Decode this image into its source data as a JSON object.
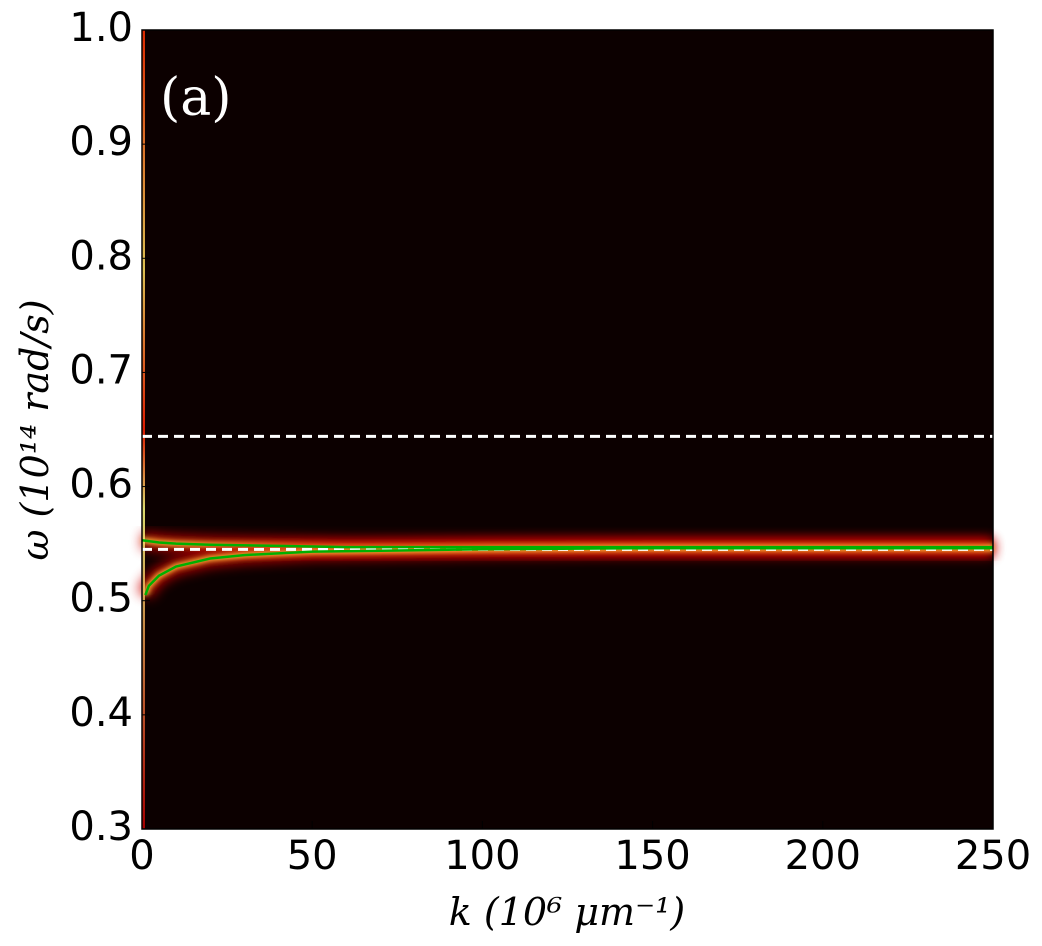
{
  "chart_data": {
    "type": "line",
    "annotation": "(a)",
    "x_label": "k (10⁶ μm⁻¹)",
    "y_label": "ω (10¹⁴ rad/s)",
    "background": "#0c0000",
    "xlim": [
      0,
      250
    ],
    "ylim": [
      0.3,
      1.0
    ],
    "xticks": [
      0,
      50,
      100,
      150,
      200,
      250
    ],
    "yticks": [
      0.3,
      0.4,
      0.5,
      0.6,
      0.7,
      0.8,
      0.9,
      {
        "value": 1,
        "label": "1.0"
      }
    ],
    "hlines": [
      {
        "y": 0.644,
        "color": "#ffffff",
        "style": "dashed"
      },
      {
        "y": 0.545,
        "color": "#ffffff",
        "style": "dashed"
      }
    ],
    "series": [
      {
        "color": "#00b000",
        "x": [
          0,
          5,
          10,
          20,
          40,
          60,
          100,
          150,
          200,
          250
        ],
        "values": [
          0.553,
          0.551,
          0.55,
          0.549,
          0.548,
          0.547,
          0.547,
          0.547,
          0.547,
          0.547
        ]
      },
      {
        "color": "#00b000",
        "x": [
          1,
          2,
          5,
          10,
          20,
          30,
          50,
          75,
          100,
          150,
          250
        ],
        "values": [
          0.505,
          0.513,
          0.522,
          0.53,
          0.537,
          0.54,
          0.543,
          0.544,
          0.545,
          0.546,
          0.546
        ]
      }
    ]
  }
}
